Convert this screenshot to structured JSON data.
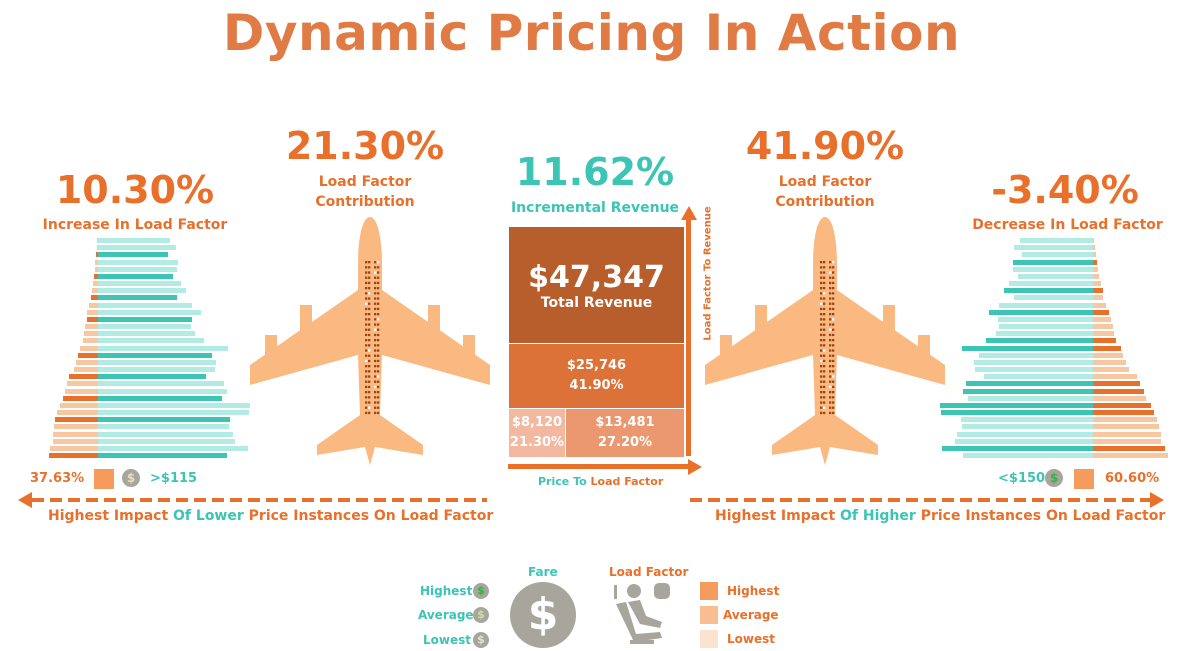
{
  "title": "Dynamic Pricing In Action",
  "left": {
    "value": "10.30%",
    "label": "Increase In Load Factor",
    "lf": "37.63%",
    "fare": ">$115",
    "footer_a": "Highest Impact ",
    "footer_b": "Of Lower ",
    "footer_c": "Price Instances ",
    "footer_d": "On Load Factor"
  },
  "left_plane": {
    "value": "21.30%",
    "label1": "Load Factor",
    "label2": "Contribution"
  },
  "center": {
    "value": "11.62%",
    "label": "Incremental Revenue",
    "total": "$47,347",
    "total_label": "Total Revenue",
    "mid_value": "$25,746",
    "mid_pct": "41.90%",
    "bl_value": "$8,120",
    "bl_pct": "21.30%",
    "br_value": "$13,481",
    "br_pct": "27.20%",
    "y_axis": "Load Factor To Revenue",
    "x_axis_a": "Price To ",
    "x_axis_b": "Load Factor"
  },
  "right_plane": {
    "value": "41.90%",
    "label1": "Load Factor",
    "label2": "Contribution"
  },
  "right": {
    "value": "-3.40%",
    "label": "Decrease In Load Factor",
    "lf": "60.60%",
    "fare": "<$150",
    "footer_a": "Highest Impact ",
    "footer_b": "Of Higher ",
    "footer_c": "Price Instances ",
    "footer_d": "On Load Factor"
  },
  "legend": {
    "fare_title": "Fare",
    "fare_items": [
      "Highest",
      "Average",
      "Lowest"
    ],
    "lf_title": "Load Factor",
    "lf_items": [
      "Highest",
      "Average",
      "Lowest"
    ]
  },
  "colors": {
    "orange": "#e8702a",
    "orange_light": "#f7c7a2",
    "teal": "#3cc4b4",
    "teal_light": "#b2ebe4",
    "plane": "#fbb982"
  },
  "left_bars": [
    [
      1,
      72,
      0
    ],
    [
      2,
      78,
      0
    ],
    [
      3,
      70,
      1
    ],
    [
      4,
      80,
      0
    ],
    [
      5,
      79,
      0
    ],
    [
      6,
      75,
      1
    ],
    [
      8,
      83,
      0
    ],
    [
      9,
      88,
      0
    ],
    [
      10,
      79,
      1
    ],
    [
      13,
      94,
      0
    ],
    [
      16,
      103,
      0
    ],
    [
      17,
      94,
      1
    ],
    [
      20,
      93,
      0
    ],
    [
      21,
      97,
      0
    ],
    [
      23,
      106,
      0
    ],
    [
      27,
      130,
      0
    ],
    [
      30,
      114,
      1
    ],
    [
      33,
      118,
      0
    ],
    [
      36,
      117,
      0
    ],
    [
      43,
      108,
      1
    ],
    [
      47,
      126,
      0
    ],
    [
      50,
      129,
      0
    ],
    [
      53,
      124,
      1
    ],
    [
      57,
      152,
      0
    ],
    [
      61,
      151,
      0
    ],
    [
      64,
      132,
      1
    ],
    [
      66,
      131,
      0
    ],
    [
      67,
      135,
      0
    ],
    [
      68,
      137,
      0
    ],
    [
      72,
      150,
      0
    ],
    [
      74,
      129,
      1
    ]
  ],
  "right_bars": [
    [
      73,
      1,
      0
    ],
    [
      79,
      2,
      0
    ],
    [
      71,
      3,
      0
    ],
    [
      80,
      4,
      1
    ],
    [
      80,
      5,
      0
    ],
    [
      75,
      6,
      0
    ],
    [
      84,
      8,
      0
    ],
    [
      89,
      10,
      1
    ],
    [
      79,
      10,
      0
    ],
    [
      94,
      13,
      0
    ],
    [
      104,
      16,
      1
    ],
    [
      95,
      18,
      0
    ],
    [
      94,
      20,
      0
    ],
    [
      97,
      21,
      0
    ],
    [
      107,
      23,
      1
    ],
    [
      131,
      28,
      1
    ],
    [
      114,
      30,
      0
    ],
    [
      119,
      33,
      0
    ],
    [
      118,
      36,
      0
    ],
    [
      109,
      44,
      0
    ],
    [
      127,
      47,
      1
    ],
    [
      130,
      51,
      1
    ],
    [
      125,
      53,
      0
    ],
    [
      153,
      58,
      1
    ],
    [
      152,
      61,
      1
    ],
    [
      132,
      64,
      0
    ],
    [
      131,
      66,
      0
    ],
    [
      136,
      68,
      0
    ],
    [
      138,
      68,
      0
    ],
    [
      151,
      72,
      1
    ],
    [
      130,
      75,
      0
    ]
  ]
}
